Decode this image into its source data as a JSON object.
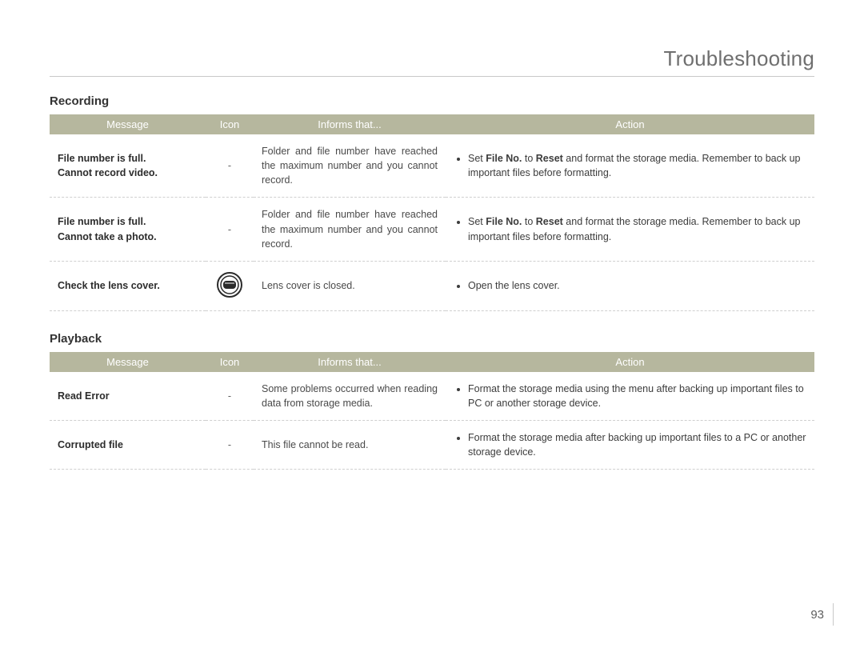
{
  "page": {
    "title": "Troubleshooting",
    "number": "93"
  },
  "colors": {
    "header_bg": "#b6b79e",
    "header_fg": "#ffffff",
    "rule": "#c9c9c9",
    "text": "#3a3a3a",
    "title": "#6f6f6f"
  },
  "columns": {
    "message": "Message",
    "icon": "Icon",
    "informs": "Informs that...",
    "action": "Action"
  },
  "sections": [
    {
      "title": "Recording",
      "rows": [
        {
          "message_lines": [
            "File number is full.",
            "Cannot record video."
          ],
          "icon": "dash",
          "informs": "Folder and file number have reached the maximum number and you cannot record.",
          "action_parts": [
            "Set ",
            {
              "b": "File No."
            },
            " to ",
            {
              "b": "Reset"
            },
            " and format the storage media. Remember to back up important files before formatting."
          ]
        },
        {
          "message_lines": [
            "File number is full.",
            "Cannot take a photo."
          ],
          "icon": "dash",
          "informs": "Folder and file number have reached the maximum number and you cannot record.",
          "action_parts": [
            "Set ",
            {
              "b": "File No."
            },
            " to ",
            {
              "b": "Reset"
            },
            " and format the storage media. Remember to back up important files before formatting."
          ]
        },
        {
          "message_lines": [
            "Check the lens cover."
          ],
          "icon": "lens",
          "informs": "Lens cover is closed.",
          "action_parts": [
            "Open the lens cover."
          ]
        }
      ]
    },
    {
      "title": "Playback",
      "rows": [
        {
          "message_lines": [
            "Read Error"
          ],
          "icon": "dash",
          "informs": "Some problems occurred when reading data from storage media.",
          "action_parts": [
            "Format the storage media using the menu after backing up important files to PC or another storage device."
          ]
        },
        {
          "message_lines": [
            "Corrupted file"
          ],
          "icon": "dash",
          "informs": "This file cannot be read.",
          "action_parts": [
            "Format the storage media after backing up important files to a PC or another storage device."
          ]
        }
      ]
    }
  ]
}
